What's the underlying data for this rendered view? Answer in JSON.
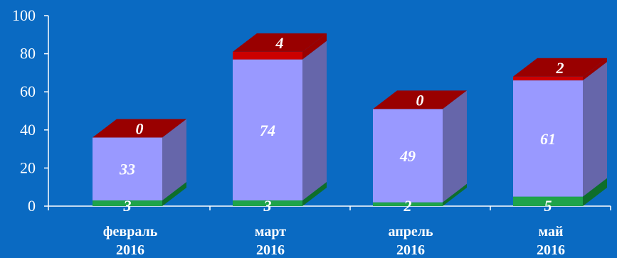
{
  "chart_data": {
    "type": "bar",
    "stacked": true,
    "style_3d": true,
    "categories": [
      [
        "февраль",
        "2016"
      ],
      [
        "март",
        "2016"
      ],
      [
        "апрель",
        "2016"
      ],
      [
        "май",
        "2016"
      ]
    ],
    "series": [
      {
        "values": [
          3,
          3,
          2,
          5
        ],
        "colors": {
          "front": "#1fa34a",
          "side": "#0e6e2a",
          "top": "#2cc45e"
        }
      },
      {
        "values": [
          33,
          74,
          49,
          61
        ],
        "colors": {
          "front": "#9999ff",
          "side": "#6666aa",
          "top": "#b3b3ff"
        }
      },
      {
        "values": [
          0,
          4,
          0,
          2
        ],
        "colors": {
          "front": "#cc0000",
          "side": "#990000",
          "top": "#990000"
        }
      }
    ],
    "ylim": [
      0,
      100
    ],
    "yticks": [
      0,
      20,
      40,
      60,
      80,
      100
    ],
    "grid": false,
    "legend": "none",
    "background": "#0a6ac2"
  }
}
